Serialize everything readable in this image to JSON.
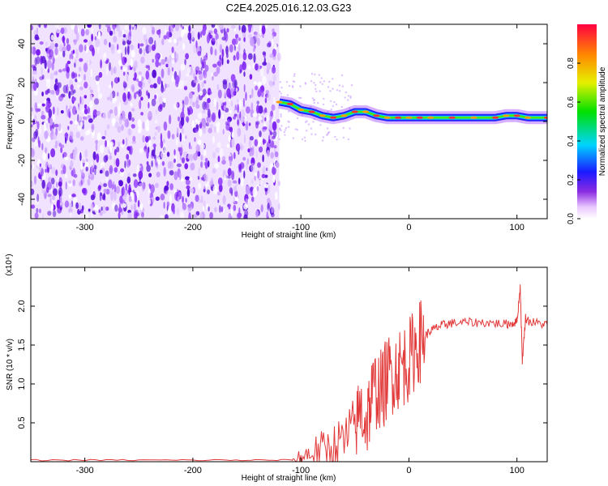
{
  "title": "C2E4.2025.016.12.03.G23",
  "colors": {
    "snr_line": "#e23a3a",
    "axis": "#000000",
    "background": "#ffffff",
    "spectro_base": "#7a1bf0"
  },
  "chart_data": [
    {
      "type": "heatmap",
      "xlabel": "Height of straight line (km)",
      "ylabel": "Frequency (Hz)",
      "xlim": [
        -350,
        128
      ],
      "ylim": [
        -50,
        50
      ],
      "xticks": [
        -300,
        -200,
        -100,
        0,
        100
      ],
      "yticks": [
        -40,
        -20,
        0,
        20,
        40
      ],
      "noise_region_x": [
        -350,
        -120
      ],
      "signal_track": {
        "x": [
          -120,
          -110,
          -100,
          -90,
          -80,
          -70,
          -60,
          -50,
          -40,
          -30,
          -20,
          -10,
          0,
          10,
          20,
          40,
          60,
          80,
          90,
          100,
          110,
          128
        ],
        "freq": [
          10,
          9,
          6,
          5,
          3,
          2,
          3,
          5,
          5,
          3,
          2,
          2,
          2,
          2,
          2,
          2,
          2,
          2,
          3,
          3,
          2,
          2
        ]
      },
      "colorbar": {
        "label": "Normalized spectral amplitude",
        "range": [
          0,
          1
        ],
        "ticks": [
          "0.0",
          "0.2",
          "0.4",
          "0.6",
          "0.8"
        ]
      }
    },
    {
      "type": "line",
      "xlabel": "Height of straight line (km)",
      "ylabel": "SNR (10 * v/v)",
      "scale_label": "(x10⁴)",
      "xlim": [
        -350,
        128
      ],
      "ylim": [
        0,
        2.5
      ],
      "xticks": [
        -300,
        -200,
        -100,
        0,
        100
      ],
      "yticks": [
        "0.5",
        "1.0",
        "1.5",
        "2.0"
      ],
      "ytick_values": [
        0.5,
        1.0,
        1.5,
        2.0
      ],
      "x": [
        -350,
        -300,
        -250,
        -200,
        -150,
        -110,
        -100,
        -90,
        -80,
        -70,
        -60,
        -50,
        -45,
        -40,
        -35,
        -30,
        -25,
        -20,
        -15,
        -10,
        -5,
        0,
        5,
        10,
        15,
        20,
        25,
        30,
        35,
        40,
        50,
        60,
        70,
        80,
        90,
        95,
        100,
        103,
        105,
        108,
        112,
        120,
        128
      ],
      "y": [
        0.02,
        0.02,
        0.02,
        0.02,
        0.02,
        0.02,
        0.05,
        0.12,
        0.15,
        0.18,
        0.25,
        0.4,
        0.7,
        0.5,
        0.8,
        0.95,
        0.9,
        1.1,
        1.15,
        1.2,
        1.25,
        1.3,
        1.45,
        1.55,
        1.62,
        1.68,
        1.72,
        1.75,
        1.77,
        1.78,
        1.79,
        1.79,
        1.79,
        1.78,
        1.77,
        1.78,
        1.8,
        2.25,
        1.3,
        1.85,
        1.8,
        1.78,
        1.76
      ]
    }
  ]
}
